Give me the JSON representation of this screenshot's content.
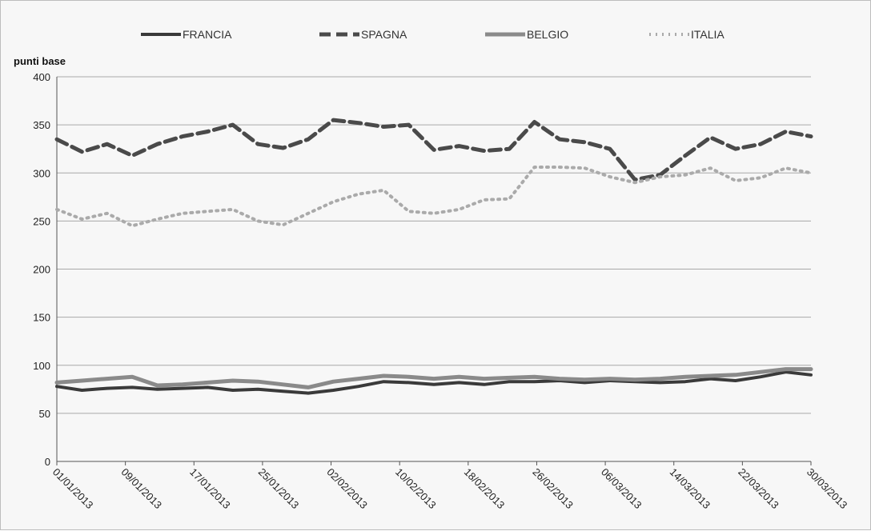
{
  "chart_data": {
    "type": "line",
    "title": "",
    "xlabel": "",
    "ylabel": "punti base",
    "ylim": [
      0,
      400
    ],
    "yticks": [
      0,
      50,
      100,
      150,
      200,
      250,
      300,
      350,
      400
    ],
    "grid": true,
    "legend_position": "top",
    "x": [
      "01/01/2013",
      "04/01/2013",
      "07/01/2013",
      "10/01/2013",
      "13/01/2013",
      "16/01/2013",
      "19/01/2013",
      "22/01/2013",
      "25/01/2013",
      "28/01/2013",
      "31/01/2013",
      "03/02/2013",
      "06/02/2013",
      "09/02/2013",
      "12/02/2013",
      "15/02/2013",
      "18/02/2013",
      "21/02/2013",
      "24/02/2013",
      "27/02/2013",
      "02/03/2013",
      "05/03/2013",
      "08/03/2013",
      "11/03/2013",
      "14/03/2013",
      "17/03/2013",
      "20/03/2013",
      "23/03/2013",
      "26/03/2013",
      "29/03/2013",
      "30/03/2013"
    ],
    "xtick_labels": [
      "01/01/2013",
      "09/01/2013",
      "17/01/2013",
      "25/01/2013",
      "02/02/2013",
      "10/02/2013",
      "18/02/2013",
      "26/02/2013",
      "06/03/2013",
      "14/03/2013",
      "22/03/2013",
      "30/03/2013"
    ],
    "series": [
      {
        "name": "FRANCIA",
        "color": "#3a3a3a",
        "style": "solid",
        "values": [
          78,
          74,
          76,
          77,
          75,
          76,
          77,
          74,
          75,
          73,
          71,
          74,
          78,
          83,
          82,
          80,
          82,
          80,
          83,
          83,
          84,
          82,
          84,
          83,
          82,
          83,
          86,
          84,
          88,
          93,
          90
        ]
      },
      {
        "name": "SPAGNA",
        "color": "#4a4a4a",
        "style": "dashed",
        "values": [
          335,
          322,
          330,
          318,
          330,
          338,
          343,
          350,
          330,
          326,
          335,
          355,
          352,
          348,
          350,
          324,
          328,
          323,
          325,
          353,
          335,
          332,
          325,
          293,
          298,
          318,
          337,
          325,
          330,
          343,
          338
        ]
      },
      {
        "name": "BELGIO",
        "color": "#8a8a8a",
        "style": "solid",
        "values": [
          82,
          84,
          86,
          88,
          79,
          80,
          82,
          84,
          83,
          80,
          77,
          83,
          86,
          89,
          88,
          86,
          88,
          86,
          87,
          88,
          86,
          85,
          86,
          85,
          86,
          88,
          89,
          90,
          93,
          96,
          96
        ]
      },
      {
        "name": "ITALIA",
        "color": "#aaaaaa",
        "style": "dotted",
        "values": [
          262,
          252,
          258,
          245,
          252,
          258,
          260,
          262,
          250,
          246,
          258,
          270,
          278,
          282,
          260,
          258,
          262,
          272,
          273,
          306,
          306,
          305,
          296,
          290,
          296,
          298,
          305,
          292,
          295,
          305,
          300
        ]
      }
    ]
  }
}
